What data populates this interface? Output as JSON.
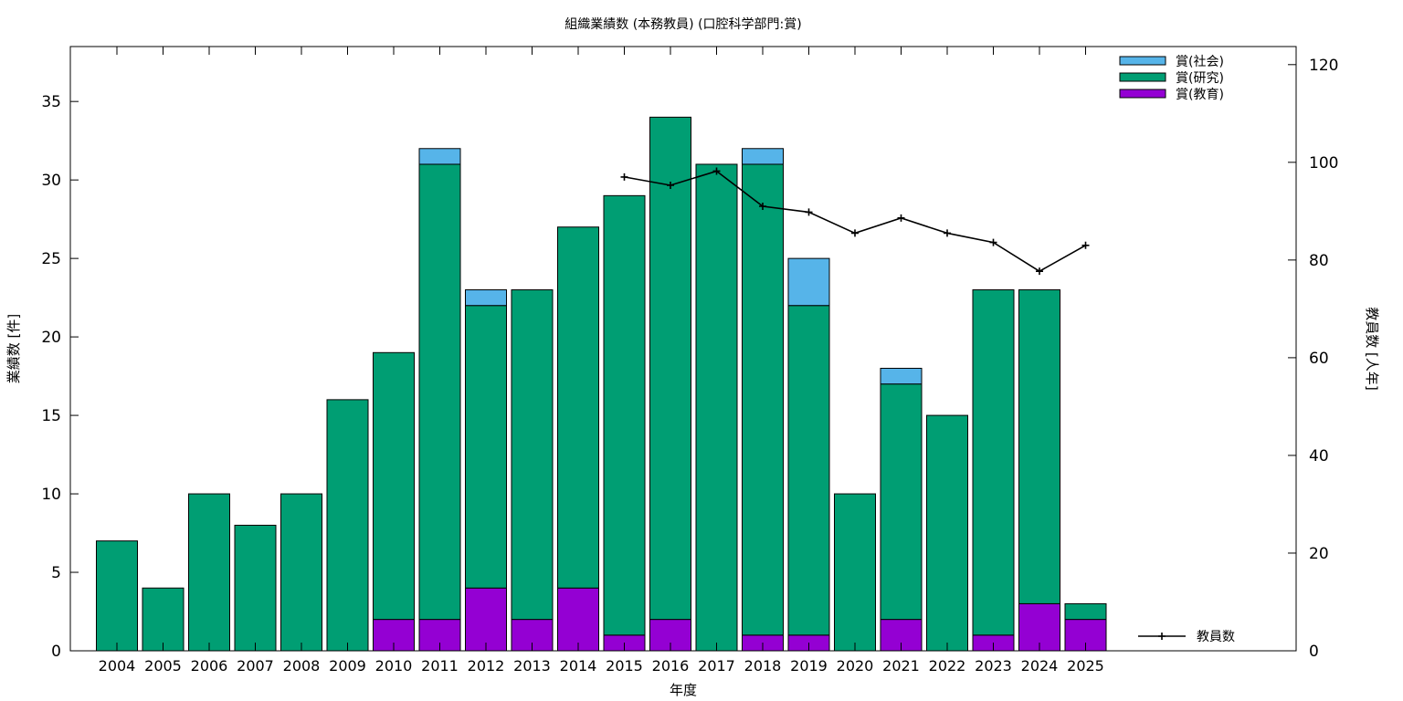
{
  "chart_data": {
    "type": "bar",
    "stacked": true,
    "title": "組織業績数 (本務教員) (口腔科学部門:賞)",
    "xlabel": "年度",
    "ylabel": "業績数 [件]",
    "y2label": "教員数 [人年]",
    "ylim": [
      0,
      38.5
    ],
    "y2lim": [
      0,
      123.7
    ],
    "yticks": [
      0,
      5,
      10,
      15,
      20,
      25,
      30,
      35
    ],
    "y2ticks": [
      0,
      20,
      40,
      60,
      80,
      100,
      120
    ],
    "grid": false,
    "legend_position": "top-right",
    "categories": [
      "2004",
      "2005",
      "2006",
      "2007",
      "2008",
      "2009",
      "2010",
      "2011",
      "2012",
      "2013",
      "2014",
      "2015",
      "2016",
      "2017",
      "2018",
      "2019",
      "2020",
      "2021",
      "2022",
      "2023",
      "2024",
      "2025"
    ],
    "series": [
      {
        "name": "賞(教育)",
        "color": "#9400d3",
        "values": [
          0,
          0,
          0,
          0,
          0,
          0,
          2,
          2,
          4,
          2,
          4,
          1,
          2,
          0,
          1,
          1,
          0,
          2,
          0,
          1,
          3,
          2
        ]
      },
      {
        "name": "賞(研究)",
        "color": "#009e73",
        "values": [
          7,
          4,
          10,
          8,
          10,
          16,
          17,
          29,
          18,
          21,
          23,
          28,
          32,
          31,
          30,
          21,
          10,
          15,
          15,
          22,
          20,
          1
        ]
      },
      {
        "name": "賞(社会)",
        "color": "#56b4e9",
        "values": [
          0,
          0,
          0,
          0,
          0,
          0,
          0,
          1,
          1,
          0,
          0,
          0,
          0,
          0,
          1,
          3,
          0,
          1,
          0,
          0,
          0,
          0
        ]
      }
    ],
    "line_series": {
      "name": "教員数",
      "axis": "y2",
      "color": "#000000",
      "x": [
        "2015",
        "2016",
        "2017",
        "2018",
        "2019",
        "2020",
        "2021",
        "2022",
        "2023",
        "2024",
        "2025"
      ],
      "values": [
        97,
        95.3,
        98.2,
        91,
        89.8,
        85.5,
        88.6,
        85.5,
        83.6,
        77.7,
        83
      ]
    }
  }
}
